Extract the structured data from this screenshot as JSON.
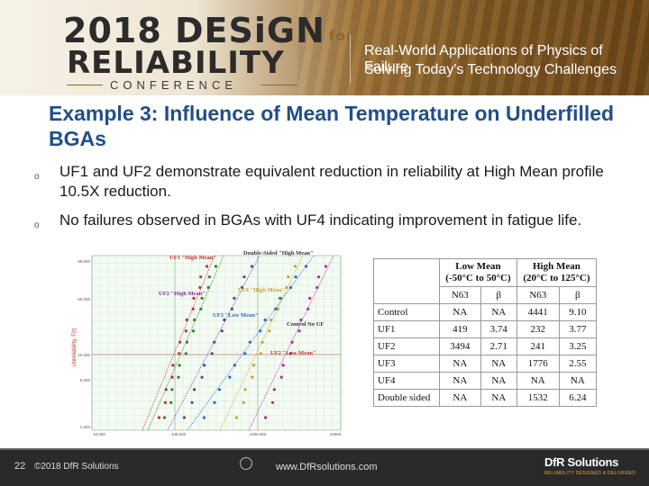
{
  "header": {
    "logo_year_design": "2018 DESiGN",
    "logo_for": "for",
    "logo_reliability": "RELIABILITY",
    "logo_conference": "CONFERENCE",
    "tagline_1": "Real-World Applications of Physics of Failure",
    "tagline_2": "Solving Today's Technology Challenges"
  },
  "slide": {
    "title": "Example 3: Influence of Mean Temperature on Underfilled BGAs",
    "bullets": [
      "UF1 and UF2 demonstrate equivalent reduction in reliability at High Mean profile 10.5X reduction.",
      "No failures observed in BGAs with UF4 indicating improvement in fatigue life."
    ]
  },
  "chart_data": {
    "type": "scatter",
    "ylabel": "Unreliability, F(t)",
    "y_ticks": [
      "99.000",
      "50.000",
      "10.000",
      "5.000",
      "1.000"
    ],
    "x_ticks": [
      "10.000",
      "100.000",
      "1000.000",
      "10000"
    ],
    "x_scale": "log",
    "y_scale": "weibull",
    "annotations": [
      "UF1 \"High Mean\"",
      "Double-Sided \"High Mean\"",
      "UF2 \"High Mean\"",
      "UF4 \"High Mean\"",
      "UF3 \"Low Mean\"",
      "Control No UF",
      "UF2 \"Low Mean\""
    ],
    "series_colors": [
      "#c03030",
      "#3a7a2a",
      "#6a3aa0",
      "#c9a227",
      "#b02a9a",
      "#2a6acb"
    ]
  },
  "table": {
    "group_headers": [
      {
        "label": "Low Mean",
        "range": "(-50°C to 50°C)"
      },
      {
        "label": "High Mean",
        "range": "(20°C to 125°C)"
      }
    ],
    "sub_headers": [
      "N63",
      "β",
      "N63",
      "β"
    ],
    "rows": [
      {
        "name": "Control",
        "values": [
          "NA",
          "NA",
          "4441",
          "9.10"
        ]
      },
      {
        "name": "UF1",
        "values": [
          "419",
          "3.74",
          "232",
          "3.77"
        ]
      },
      {
        "name": "UF2",
        "values": [
          "3494",
          "2.71",
          "241",
          "3.25"
        ]
      },
      {
        "name": "UF3",
        "values": [
          "NA",
          "NA",
          "1776",
          "2.55"
        ]
      },
      {
        "name": "UF4",
        "values": [
          "NA",
          "NA",
          "NA",
          "NA"
        ]
      },
      {
        "name": "Double sided",
        "values": [
          "NA",
          "NA",
          "1532",
          "6.24"
        ]
      }
    ]
  },
  "footer": {
    "page_number": "22",
    "copyright": "©2018 DfR Solutions",
    "website": "www.DfRsolutions.com",
    "brand": "DfR Solutions",
    "brand_sub": "RELIABILITY DESIGNED & DELIVERED"
  }
}
